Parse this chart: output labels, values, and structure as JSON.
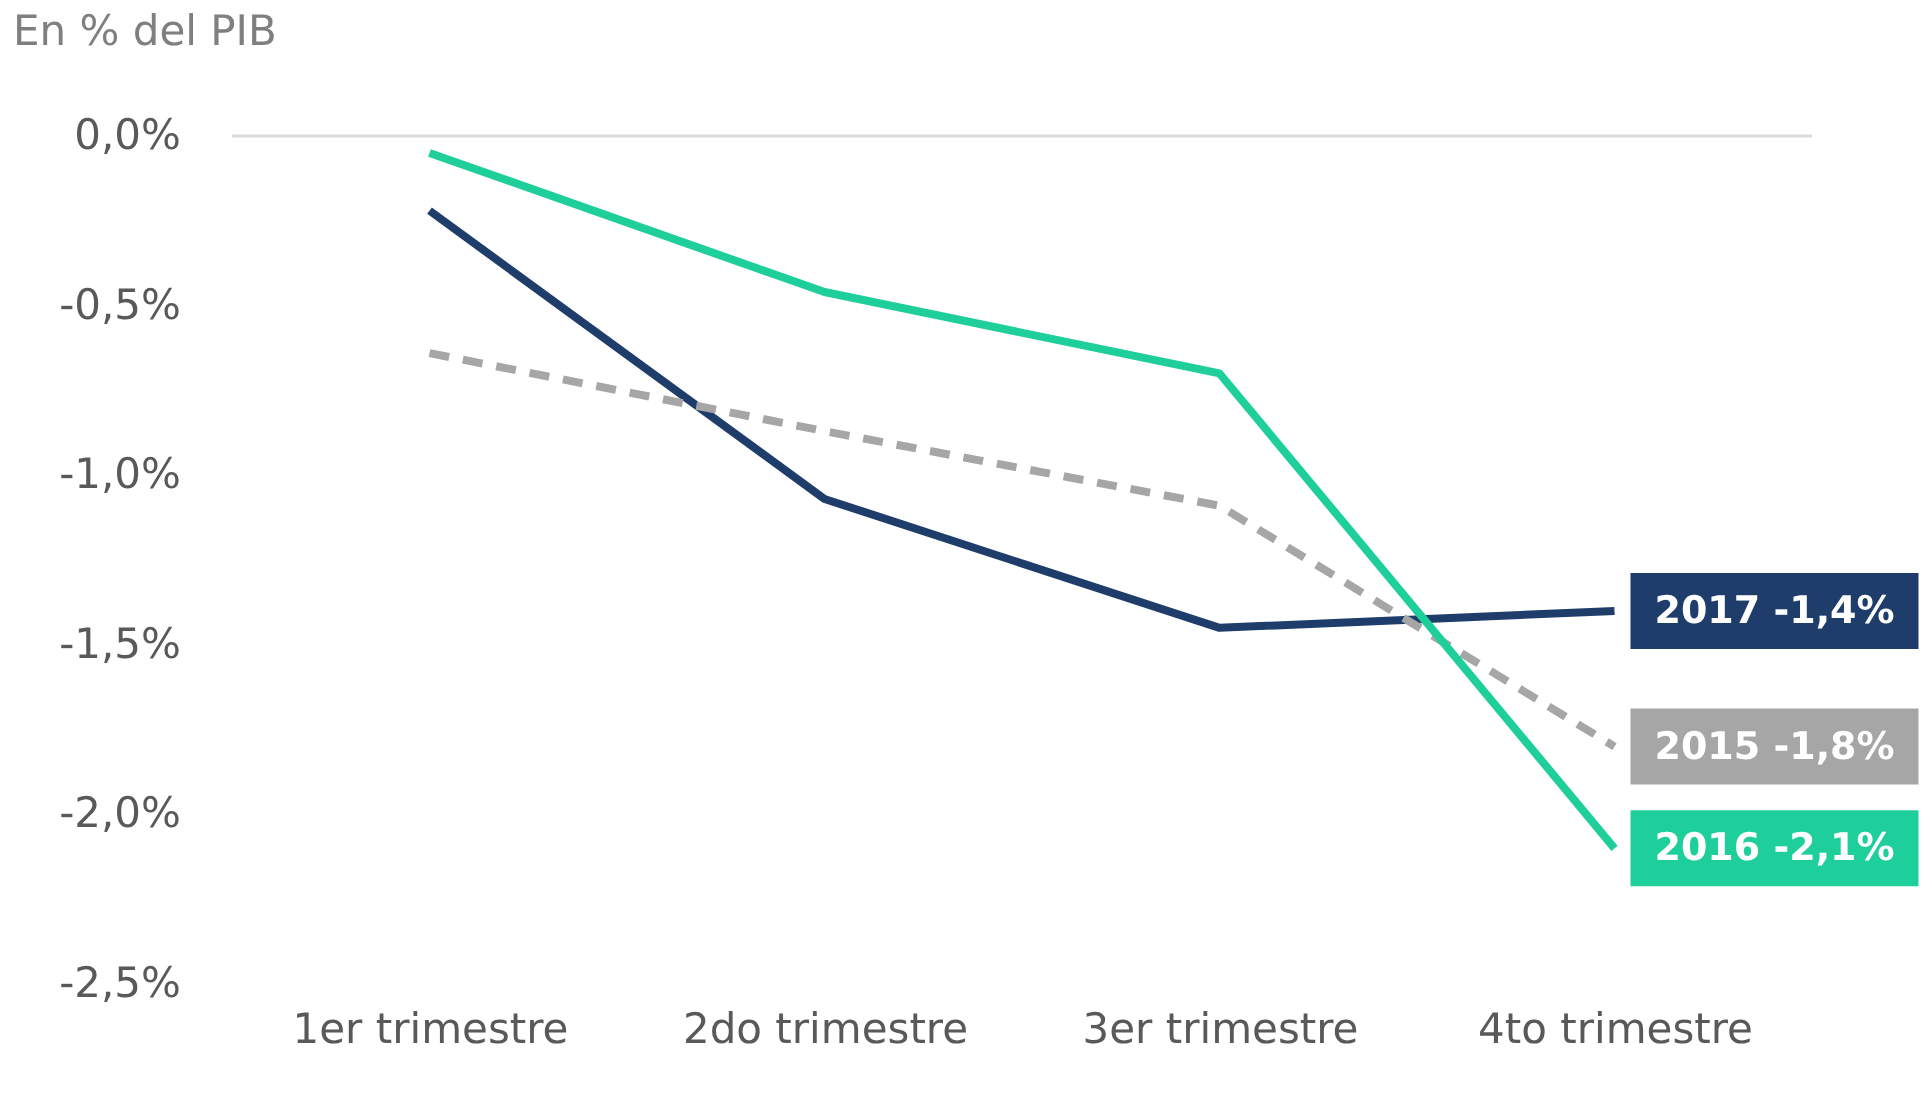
{
  "chart_data": {
    "type": "line",
    "ylabel": "En % del PIB",
    "categories": [
      "1er trimestre",
      "2do trimestre",
      "3er trimestre",
      "4to trimestre"
    ],
    "series": [
      {
        "name": "2017",
        "color": "#1f3d6b",
        "values": [
          -0.22,
          -1.07,
          -1.45,
          -1.4
        ],
        "value_labels": [
          null,
          null,
          null,
          "-1,4%"
        ],
        "line_style": "solid"
      },
      {
        "name": "2015",
        "color": "#a6a6a6",
        "values": [
          -0.64,
          -0.87,
          -1.09,
          -1.8
        ],
        "value_labels": [
          null,
          null,
          null,
          "-1,8%"
        ],
        "line_style": "dashed"
      },
      {
        "name": "2016",
        "color": "#1fcf9b",
        "values": [
          -0.05,
          -0.46,
          -0.7,
          -2.1
        ],
        "value_labels": [
          null,
          null,
          null,
          "-2,1%"
        ],
        "line_style": "solid"
      }
    ],
    "ylim": [
      -2.5,
      0
    ],
    "yticks": [
      {
        "value": 0,
        "label": "0,0%"
      },
      {
        "value": -0.5,
        "label": "-0,5%"
      },
      {
        "value": -1,
        "label": "-1,0%"
      },
      {
        "value": -1.5,
        "label": "-1,5%"
      },
      {
        "value": -2,
        "label": "-2,0%"
      },
      {
        "value": -2.5,
        "label": "-2,5%"
      }
    ],
    "ref_lines": [
      {
        "axis": "y",
        "value": 0,
        "color": "#d9d9d9"
      }
    ],
    "grid": false,
    "marker": "none"
  }
}
